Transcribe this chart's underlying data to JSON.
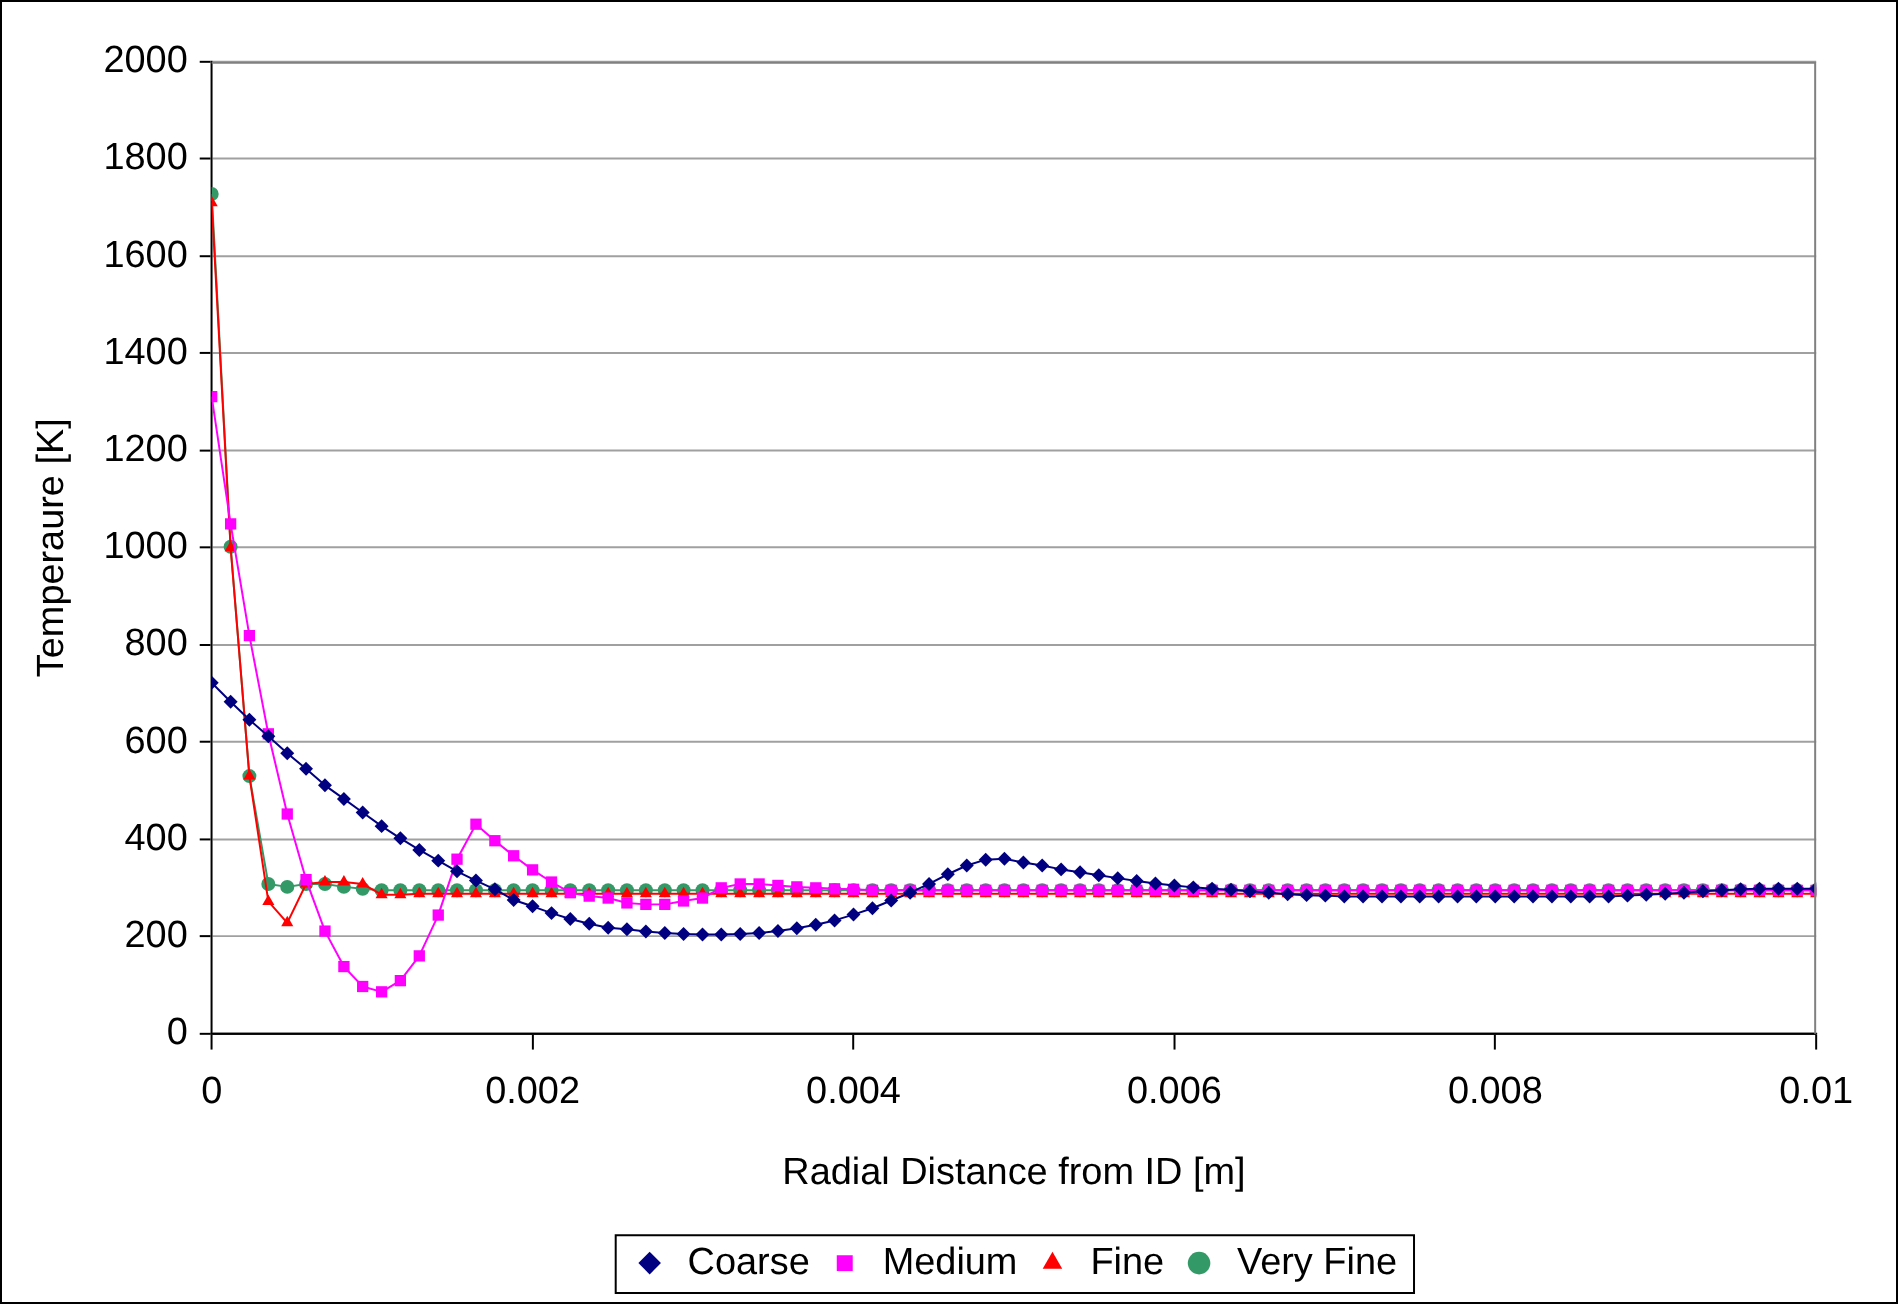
{
  "chart_data": {
    "type": "line",
    "xlabel": "Radial Distance from ID [m]",
    "ylabel": "Temperaure [K]",
    "x": [
      0,
      0.000118,
      0.000235,
      0.000353,
      0.000471,
      0.000588,
      0.000706,
      0.000824,
      0.000941,
      0.001059,
      0.001176,
      0.001294,
      0.001412,
      0.001529,
      0.001647,
      0.001765,
      0.001882,
      0.002,
      0.002118,
      0.002235,
      0.002353,
      0.002471,
      0.002588,
      0.002706,
      0.002824,
      0.002941,
      0.003059,
      0.003176,
      0.003294,
      0.003412,
      0.003529,
      0.003647,
      0.003765,
      0.003882,
      0.004,
      0.004118,
      0.004235,
      0.004353,
      0.004471,
      0.004588,
      0.004706,
      0.004824,
      0.004941,
      0.005059,
      0.005176,
      0.005294,
      0.005412,
      0.005529,
      0.005647,
      0.005765,
      0.005882,
      0.006,
      0.006118,
      0.006235,
      0.006353,
      0.006471,
      0.006588,
      0.006706,
      0.006824,
      0.006941,
      0.007059,
      0.007176,
      0.007294,
      0.007412,
      0.007529,
      0.007647,
      0.007765,
      0.007882,
      0.008,
      0.008118,
      0.008235,
      0.008353,
      0.008471,
      0.008588,
      0.008706,
      0.008824,
      0.008941,
      0.009059,
      0.009176,
      0.009294,
      0.009412,
      0.009529,
      0.009647,
      0.009765,
      0.009882,
      0.01
    ],
    "series": [
      {
        "name": "Coarse",
        "color": "#000080",
        "marker": "diamond",
        "values": [
          722,
          683,
          646,
          612,
          577,
          545,
          511,
          483,
          455,
          427,
          402,
          378,
          356,
          334,
          315,
          297,
          275,
          262,
          248,
          236,
          226,
          218,
          215,
          210,
          207,
          205,
          204,
          204,
          205,
          207,
          211,
          217,
          224,
          233,
          245,
          258,
          274,
          290,
          308,
          328,
          346,
          358,
          360,
          352,
          346,
          338,
          332,
          326,
          320,
          314,
          309,
          305,
          301,
          298,
          296,
          293,
          290,
          287,
          285,
          284,
          282,
          282,
          282,
          282,
          282,
          282,
          282,
          282,
          282,
          282,
          282,
          282,
          282,
          282,
          282,
          284,
          286,
          288,
          290,
          293,
          295,
          297,
          298,
          298,
          298,
          298
        ]
      },
      {
        "name": "Medium",
        "color": "#ff00ff",
        "marker": "square",
        "values": [
          1311,
          1049,
          819,
          617,
          452,
          317,
          211,
          138,
          97,
          86,
          109,
          160,
          244,
          359,
          431,
          397,
          366,
          337,
          312,
          290,
          283,
          279,
          269,
          266,
          266,
          273,
          279,
          300,
          308,
          308,
          305,
          302,
          300,
          298,
          297,
          295,
          295,
          295,
          295,
          295,
          295,
          295,
          295,
          295,
          295,
          295,
          295,
          295,
          295,
          295,
          295,
          295,
          295,
          295,
          295,
          295,
          295,
          295,
          295,
          295,
          295,
          295,
          295,
          295,
          295,
          295,
          295,
          295,
          295,
          295,
          295,
          295,
          295,
          295,
          295,
          295,
          295,
          295,
          295,
          295,
          295,
          295,
          295,
          295,
          295,
          295
        ]
      },
      {
        "name": "Fine",
        "color": "#ff0000",
        "marker": "triangle",
        "values": [
          1710,
          1000,
          530,
          272,
          228,
          308,
          312,
          312,
          308,
          286,
          286,
          288,
          288,
          288,
          288,
          288,
          288,
          288,
          288,
          288,
          288,
          288,
          288,
          288,
          288,
          288,
          288,
          288,
          288,
          288,
          288,
          288,
          288,
          288,
          288,
          288,
          288,
          288,
          288,
          288,
          288,
          288,
          288,
          288,
          288,
          288,
          288,
          288,
          288,
          288,
          288,
          288,
          288,
          288,
          288,
          288,
          288,
          288,
          288,
          288,
          288,
          288,
          288,
          288,
          288,
          288,
          288,
          288,
          288,
          288,
          288,
          288,
          288,
          288,
          288,
          288,
          288,
          288,
          288,
          288,
          288,
          288,
          288,
          288,
          288,
          288
        ]
      },
      {
        "name": "Very Fine",
        "color": "#339966",
        "marker": "circle",
        "values": [
          1728,
          1002,
          530,
          308,
          302,
          308,
          308,
          302,
          298,
          295,
          295,
          295,
          295,
          295,
          295,
          295,
          295,
          295,
          295,
          295,
          295,
          295,
          295,
          295,
          295,
          295,
          295,
          295,
          295,
          295,
          295,
          295,
          295,
          295,
          295,
          295,
          295,
          295,
          295,
          295,
          295,
          295,
          295,
          295,
          295,
          295,
          295,
          295,
          295,
          295,
          295,
          295,
          295,
          295,
          295,
          295,
          295,
          295,
          295,
          295,
          295,
          295,
          295,
          295,
          295,
          295,
          295,
          295,
          295,
          295,
          295,
          295,
          295,
          295,
          295,
          295,
          295,
          295,
          295,
          295,
          295,
          295,
          295,
          295,
          295,
          295
        ]
      }
    ],
    "xlim": [
      0,
      0.01
    ],
    "xticks": [
      0,
      0.002,
      0.004,
      0.006,
      0.008,
      0.01
    ],
    "ylim": [
      0,
      2000
    ],
    "yticks": [
      0,
      200,
      400,
      600,
      800,
      1000,
      1200,
      1400,
      1600,
      1800,
      2000
    ],
    "grid": "y",
    "legend": "bottom",
    "line_style": "solid"
  }
}
